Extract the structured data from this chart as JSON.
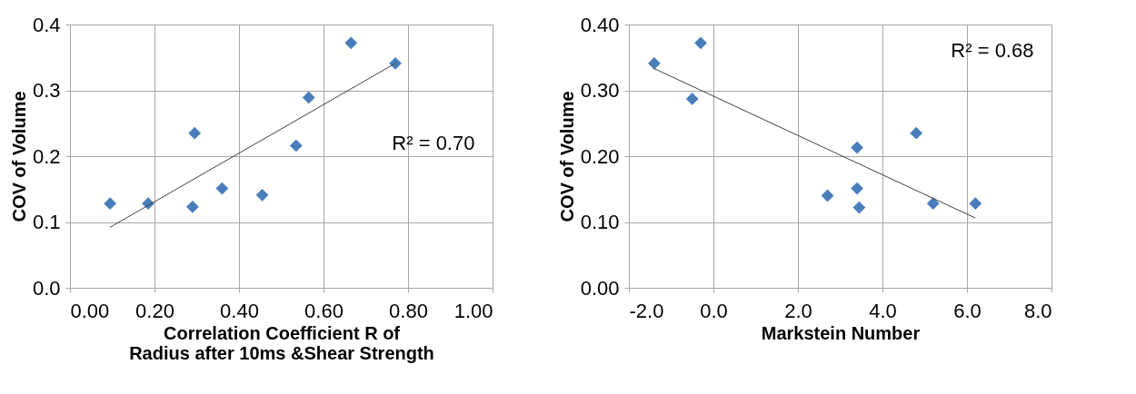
{
  "chart_data": [
    {
      "type": "scatter",
      "xlabel": "Correlation Coefficient R of\nRadius after 10ms &Shear Strength",
      "ylabel": "COV of Volume",
      "xlim": [
        0,
        1
      ],
      "ylim": [
        0,
        0.4
      ],
      "xticks": [
        {
          "value": 0,
          "label": "0.00"
        },
        {
          "value": 0.2,
          "label": "0.20"
        },
        {
          "value": 0.4,
          "label": "0.40"
        },
        {
          "value": 0.6,
          "label": "0.60"
        },
        {
          "value": 0.8,
          "label": "0.80"
        },
        {
          "value": 1,
          "label": "1.00"
        }
      ],
      "yticks": [
        {
          "value": 0,
          "label": "0.0"
        },
        0.1,
        0.2,
        0.3,
        0.4
      ],
      "grid": true,
      "annotations": [
        "R² = 0.70"
      ],
      "series": [
        {
          "color": "#4a7ebb",
          "marker": "diamond",
          "x": [
            0.095,
            0.185,
            0.29,
            0.295,
            0.36,
            0.455,
            0.535,
            0.565,
            0.665,
            0.77
          ],
          "values": [
            0.128,
            0.128,
            0.123,
            0.235,
            0.151,
            0.141,
            0.216,
            0.289,
            0.372,
            0.341
          ]
        },
        {
          "type": "line",
          "color": "#404040",
          "x": [
            0.095,
            0.77
          ],
          "values": [
            0.092,
            0.341
          ]
        }
      ]
    },
    {
      "type": "scatter",
      "xlabel": "Markstein Number",
      "ylabel": "COV of Volume",
      "xlim": [
        -2,
        8
      ],
      "ylim": [
        0,
        0.4
      ],
      "xticks": [
        {
          "value": -2,
          "label": "-2.0"
        },
        {
          "value": 0,
          "label": "0.0"
        },
        {
          "value": 2,
          "label": "2.0"
        },
        {
          "value": 4,
          "label": "4.0"
        },
        {
          "value": 6,
          "label": "6.0"
        },
        {
          "value": 8,
          "label": "8.0"
        }
      ],
      "yticks": [
        {
          "value": 0,
          "label": "0.00"
        },
        {
          "value": 0.1,
          "label": "0.10"
        },
        {
          "value": 0.2,
          "label": "0.20"
        },
        {
          "value": 0.3,
          "label": "0.30"
        },
        {
          "value": 0.4,
          "label": "0.40"
        }
      ],
      "grid": true,
      "annotations": [
        "R² = 0.68"
      ],
      "series": [
        {
          "color": "#4a7ebb",
          "marker": "diamond",
          "x": [
            -1.4,
            -0.3,
            -0.5,
            3.4,
            4.8,
            3.4,
            2.7,
            3.45,
            5.2,
            6.2
          ],
          "values": [
            0.341,
            0.372,
            0.287,
            0.213,
            0.235,
            0.151,
            0.14,
            0.122,
            0.128,
            0.128
          ]
        },
        {
          "type": "line",
          "color": "#404040",
          "x": [
            -1.4,
            6.2
          ],
          "values": [
            0.333,
            0.106
          ]
        }
      ]
    }
  ]
}
